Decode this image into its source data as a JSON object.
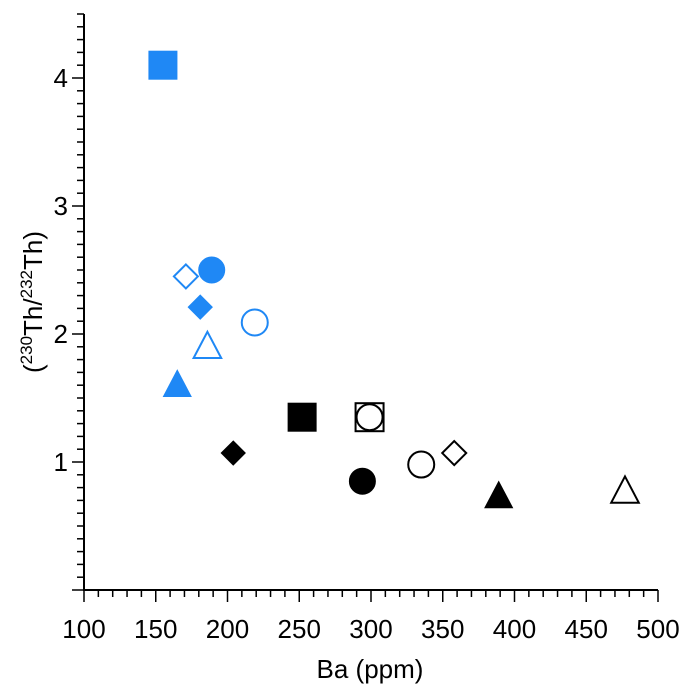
{
  "chart_data": {
    "type": "scatter",
    "title": "",
    "xlabel": "Ba (ppm)",
    "ylabel": {
      "open": "(",
      "sup1": "230",
      "mid": "Th/",
      "sup2": "232",
      "end": "Th)"
    },
    "xlim": [
      100,
      500
    ],
    "ylim": [
      0,
      4.5
    ],
    "x_ticks": [
      "100",
      "150",
      "200",
      "250",
      "300",
      "350",
      "400",
      "450",
      "500"
    ],
    "y_ticks": [
      "1",
      "2",
      "3",
      "4"
    ],
    "grid": false,
    "legend": "none",
    "colors": {
      "blue": "#1f88f5",
      "black": "#000000"
    },
    "points": [
      {
        "x": 155,
        "y": 4.1,
        "marker": "square",
        "fill": "filled",
        "color": "blue"
      },
      {
        "x": 189,
        "y": 2.5,
        "marker": "circle",
        "fill": "filled",
        "color": "blue"
      },
      {
        "x": 171,
        "y": 2.45,
        "marker": "diamond",
        "fill": "open",
        "color": "blue"
      },
      {
        "x": 181,
        "y": 2.21,
        "marker": "diamond",
        "fill": "filled",
        "color": "blue"
      },
      {
        "x": 219,
        "y": 2.09,
        "marker": "circle",
        "fill": "open",
        "color": "blue"
      },
      {
        "x": 186,
        "y": 1.9,
        "marker": "triangle",
        "fill": "open",
        "color": "blue"
      },
      {
        "x": 165,
        "y": 1.6,
        "marker": "triangle",
        "fill": "filled",
        "color": "blue"
      },
      {
        "x": 252,
        "y": 1.35,
        "marker": "square",
        "fill": "filled",
        "color": "black"
      },
      {
        "x": 299,
        "y": 1.35,
        "marker": "square",
        "fill": "open",
        "color": "black"
      },
      {
        "x": 299,
        "y": 1.35,
        "marker": "circle",
        "fill": "open",
        "color": "black"
      },
      {
        "x": 204,
        "y": 1.07,
        "marker": "diamond",
        "fill": "filled",
        "color": "black"
      },
      {
        "x": 294,
        "y": 0.85,
        "marker": "circle",
        "fill": "filled",
        "color": "black"
      },
      {
        "x": 335,
        "y": 0.98,
        "marker": "circle",
        "fill": "open",
        "color": "black"
      },
      {
        "x": 358,
        "y": 1.07,
        "marker": "diamond",
        "fill": "open",
        "color": "black"
      },
      {
        "x": 389,
        "y": 0.73,
        "marker": "triangle",
        "fill": "filled",
        "color": "black"
      },
      {
        "x": 477,
        "y": 0.77,
        "marker": "triangle",
        "fill": "open",
        "color": "black"
      }
    ]
  }
}
